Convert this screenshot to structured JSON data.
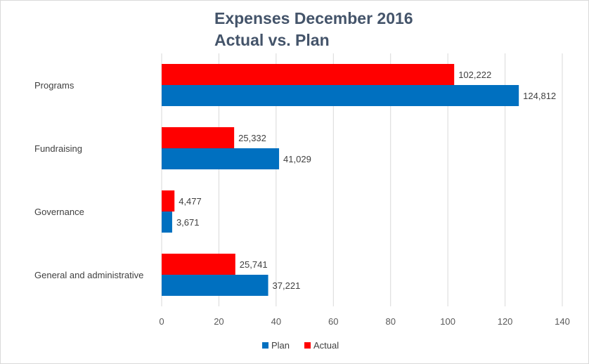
{
  "chart_data": {
    "type": "bar",
    "orientation": "horizontal",
    "title": "Expenses December 2016",
    "subtitle": "Actual vs. Plan",
    "categories": [
      "Programs",
      "Fundraising",
      "Governance",
      "General and administrative"
    ],
    "series": [
      {
        "name": "Actual",
        "color": "#ff0000",
        "values": [
          102222,
          25332,
          4477,
          25741
        ],
        "labels": [
          "102,222",
          "25,332",
          "4,477",
          "25,741"
        ]
      },
      {
        "name": "Plan",
        "color": "#0070c0",
        "values": [
          124812,
          41029,
          3671,
          37221
        ],
        "labels": [
          "124,812",
          "41,029",
          "3,671",
          "37,221"
        ]
      }
    ],
    "x_ticks": [
      "0",
      "20",
      "40",
      "60",
      "80",
      "100",
      "120",
      "140"
    ],
    "xlim": [
      0,
      140000
    ],
    "xlabel": "",
    "ylabel": "",
    "grid": true,
    "legend": {
      "position": "bottom",
      "order": [
        "Plan",
        "Actual"
      ]
    }
  }
}
